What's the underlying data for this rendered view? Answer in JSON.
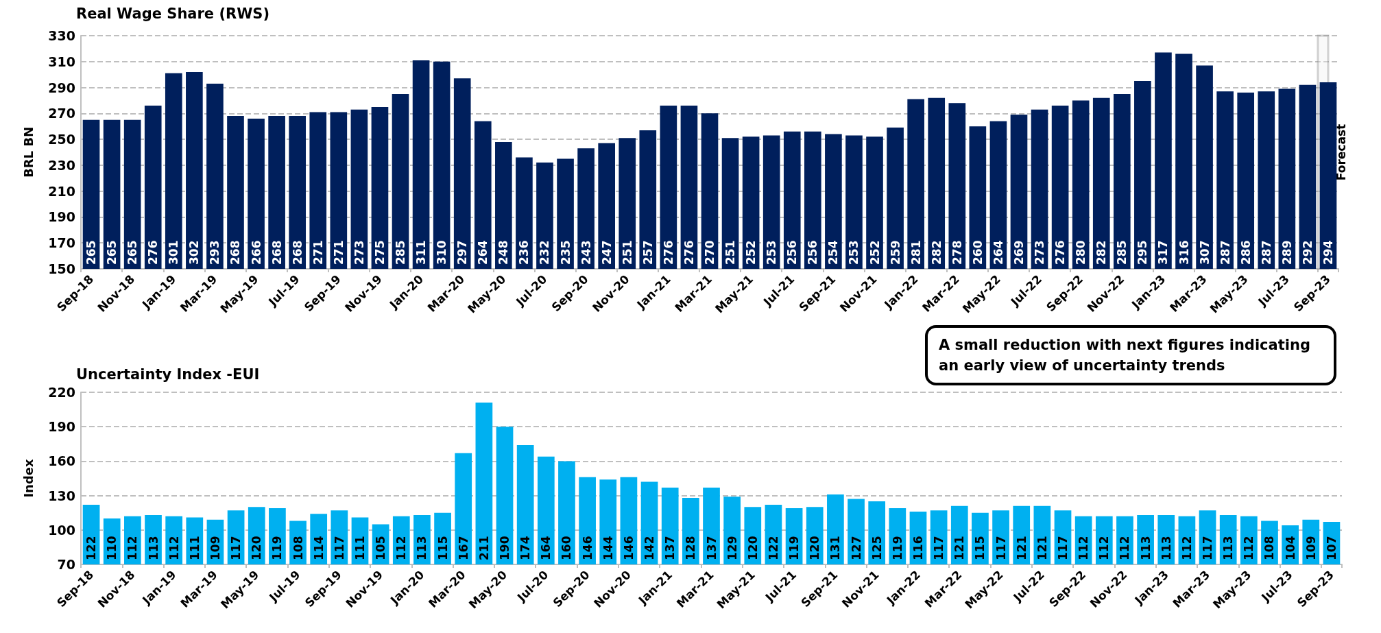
{
  "chart_data": [
    {
      "type": "bar",
      "title": "Real Wage Share (RWS)",
      "ylabel": "BRL BN",
      "categories": [
        "Sep-18",
        null,
        "Nov-18",
        null,
        "Jan-19",
        null,
        "Mar-19",
        null,
        "May-19",
        null,
        "Jul-19",
        null,
        "Sep-19",
        null,
        "Nov-19",
        null,
        "Jan-20",
        null,
        "Mar-20",
        null,
        "May-20",
        null,
        "Jul-20",
        null,
        "Sep-20",
        null,
        "Nov-20",
        null,
        "Jan-21",
        null,
        "Mar-21",
        null,
        "May-21",
        null,
        "Jul-21",
        null,
        "Sep-21",
        null,
        "Nov-21",
        null,
        "Jan-22",
        null,
        "Mar-22",
        null,
        "May-22",
        null,
        "Jul-22",
        null,
        "Sep-22",
        null,
        "Nov-22",
        null,
        "Jan-23",
        null,
        "Mar-23",
        null,
        "May-23",
        null,
        "Jul-23",
        null,
        "Sep-23"
      ],
      "values": [
        265,
        265,
        265,
        276,
        301,
        302,
        293,
        268,
        266,
        268,
        268,
        271,
        271,
        273,
        275,
        285,
        311,
        310,
        297,
        264,
        248,
        236,
        232,
        235,
        243,
        247,
        251,
        257,
        276,
        276,
        270,
        251,
        252,
        253,
        256,
        256,
        254,
        253,
        252,
        259,
        281,
        282,
        278,
        260,
        264,
        269,
        273,
        276,
        280,
        282,
        285,
        295,
        317,
        316,
        307,
        287,
        286,
        287,
        289,
        292,
        294
      ],
      "color": "#001f5c",
      "ylim": [
        150,
        330
      ],
      "yticks": [
        150,
        170,
        190,
        210,
        230,
        250,
        270,
        290,
        310,
        330
      ],
      "grid": "y",
      "data_labels": true,
      "bands": [
        {
          "axis": "x",
          "from": "Sep-23",
          "to": "Sep-23",
          "label": "Forecast",
          "color": "#efefef"
        }
      ]
    },
    {
      "type": "bar",
      "title": "Uncertainty Index -EUI",
      "ylabel": "Index",
      "categories": [
        "Sep-18",
        null,
        "Nov-18",
        null,
        "Jan-19",
        null,
        "Mar-19",
        null,
        "May-19",
        null,
        "Jul-19",
        null,
        "Sep-19",
        null,
        "Nov-19",
        null,
        "Jan-20",
        null,
        "Mar-20",
        null,
        "May-20",
        null,
        "Jul-20",
        null,
        "Sep-20",
        null,
        "Nov-20",
        null,
        "Jan-21",
        null,
        "Mar-21",
        null,
        "May-21",
        null,
        "Jul-21",
        null,
        "Sep-21",
        null,
        "Nov-21",
        null,
        "Jan-22",
        null,
        "Mar-22",
        null,
        "May-22",
        null,
        "Jul-22",
        null,
        "Sep-22",
        null,
        "Nov-22",
        null,
        "Jan-23",
        null,
        "Mar-23",
        null,
        "May-23",
        null,
        "Jul-23",
        null,
        "Sep-23"
      ],
      "values": [
        122,
        110,
        112,
        113,
        112,
        111,
        109,
        117,
        120,
        119,
        108,
        114,
        117,
        111,
        105,
        112,
        113,
        115,
        167,
        211,
        190,
        174,
        164,
        160,
        146,
        144,
        146,
        142,
        137,
        128,
        137,
        129,
        120,
        122,
        119,
        120,
        131,
        127,
        125,
        119,
        116,
        117,
        121,
        115,
        117,
        121,
        121,
        117,
        112,
        112,
        112,
        113,
        113,
        112,
        117,
        113,
        112,
        108,
        104,
        109,
        107
      ],
      "color": "#00b0f0",
      "ylim": [
        70,
        220
      ],
      "yticks": [
        70,
        100,
        130,
        160,
        190,
        220
      ],
      "grid": "y",
      "data_labels": true,
      "annotations": [
        "A small reduction with next figures indicating an early view of uncertainty trends"
      ]
    }
  ]
}
